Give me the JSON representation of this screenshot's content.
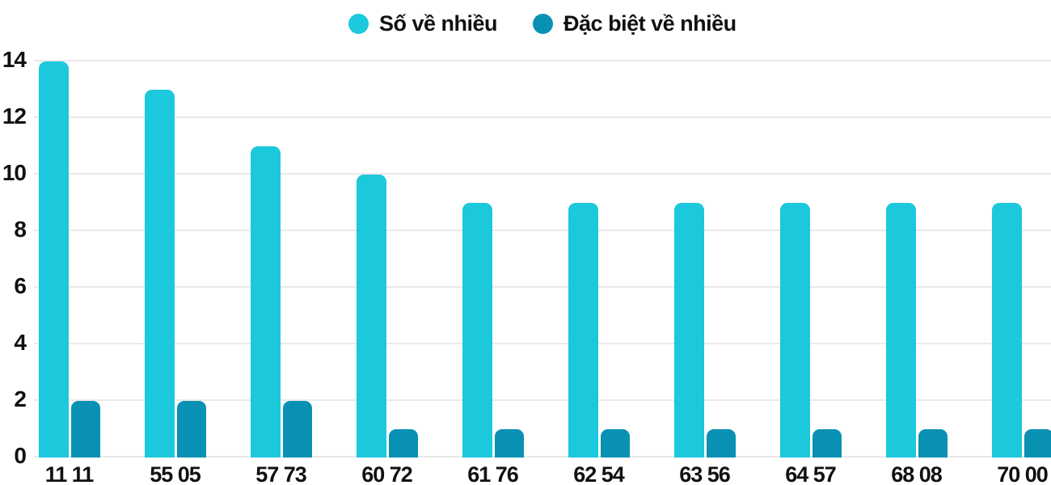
{
  "chart_data": {
    "type": "bar",
    "title": "",
    "xlabel": "",
    "ylabel": "",
    "categories": [
      "11 11",
      "55 05",
      "57 73",
      "60 72",
      "61 76",
      "62 54",
      "63 56",
      "64 57",
      "68 08",
      "70 00"
    ],
    "series": [
      {
        "name": "Số về nhiều",
        "color": "#1cc8dc",
        "values": [
          14,
          13,
          11,
          10,
          9,
          9,
          9,
          9,
          9,
          9
        ]
      },
      {
        "name": "Đặc biệt về nhiều",
        "color": "#0891b2",
        "values": [
          2,
          2,
          2,
          1,
          1,
          1,
          1,
          1,
          1,
          1
        ]
      }
    ],
    "yticks": [
      0,
      2,
      4,
      6,
      8,
      10,
      12,
      14
    ],
    "ylim": [
      0,
      14
    ],
    "grid": true,
    "legend_position": "top"
  },
  "colors": {
    "bar_light": "#1cc8dc",
    "bar_dark": "#0891b2",
    "gridline": "#e9e9e9",
    "text": "#111111",
    "background": "#ffffff"
  }
}
